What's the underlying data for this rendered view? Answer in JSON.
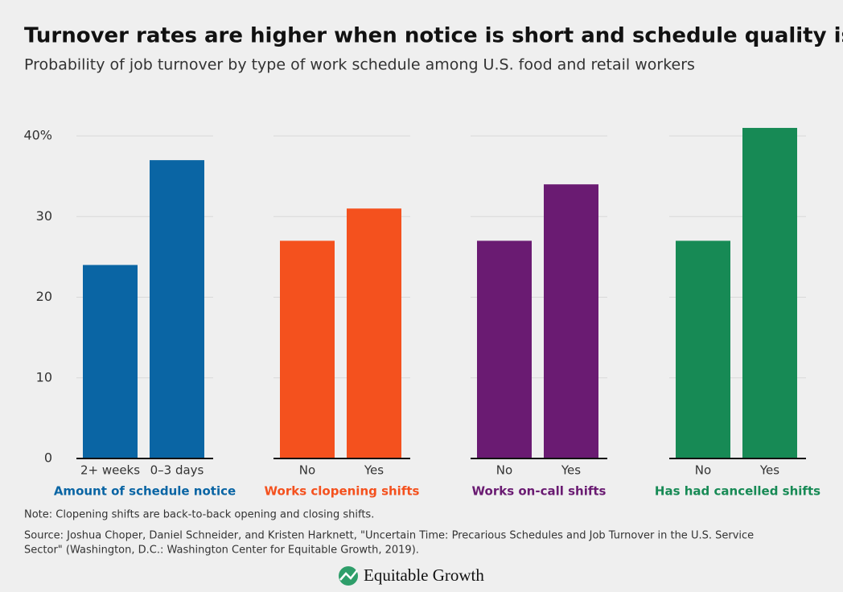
{
  "chart_data": {
    "type": "bar",
    "title": "Turnover rates are higher when notice is short and schedule quality is low",
    "subtitle": "Probability of job turnover by type of work schedule among U.S. food and retail workers",
    "ylim": [
      0,
      42
    ],
    "yticks": [
      0,
      10,
      20,
      30,
      {
        "value": 40,
        "label": "40%"
      }
    ],
    "grid": true,
    "panels": [
      {
        "name": "Amount of schedule notice",
        "color": "#0a65a4",
        "categories": [
          "2+ weeks",
          "0–3 days"
        ],
        "values": [
          24,
          37
        ]
      },
      {
        "name": "Works clopening shifts",
        "color": "#f4511e",
        "categories": [
          "No",
          "Yes"
        ],
        "values": [
          27,
          31
        ]
      },
      {
        "name": "Works on-call shifts",
        "color": "#6a1b72",
        "categories": [
          "No",
          "Yes"
        ],
        "values": [
          27,
          34
        ]
      },
      {
        "name": "Has had cancelled shifts",
        "color": "#178a55",
        "categories": [
          "No",
          "Yes"
        ],
        "values": [
          27,
          41
        ]
      }
    ]
  },
  "note": "Note: Clopening shifts are back-to-back opening and closing shifts.",
  "source": [
    "Source: Joshua Choper, Daniel Schneider, and Kristen Harknett, \"Uncertain Time: Precarious Schedules and Job Turnover in the U.S. Service",
    "Sector\" (Washington, D.C.: Washington Center for Equitable Growth, 2019)."
  ],
  "brand": "Equitable Growth"
}
